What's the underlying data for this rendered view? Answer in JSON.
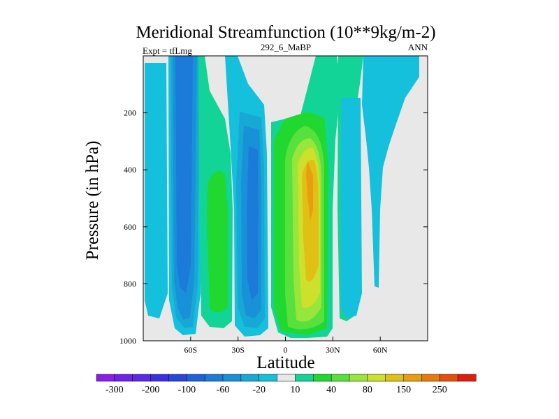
{
  "chart_data": {
    "type": "heatmap",
    "title": "Meridional Streamfunction (10**9kg/m-2)",
    "subtitle_left": "Expt = tfLmg",
    "subtitle_center": "292_6_MaBP",
    "subtitle_right": "ANN",
    "xlabel": "Latitude",
    "ylabel": "Pressure (in hPa)",
    "xlim": [
      -90,
      90
    ],
    "ylim": [
      1000,
      0
    ],
    "x_ticks": [
      {
        "value": -60,
        "label": "60S"
      },
      {
        "value": -30,
        "label": "30S"
      },
      {
        "value": 0,
        "label": "0"
      },
      {
        "value": 30,
        "label": "30N"
      },
      {
        "value": 60,
        "label": "60N"
      }
    ],
    "y_ticks": [
      {
        "value": 200,
        "label": "200"
      },
      {
        "value": 400,
        "label": "400"
      },
      {
        "value": 600,
        "label": "600"
      },
      {
        "value": 800,
        "label": "800"
      },
      {
        "value": 1000,
        "label": "1000"
      }
    ],
    "colorbar": {
      "levels": [
        -300,
        -250,
        -200,
        -150,
        -100,
        -80,
        -60,
        -40,
        -20,
        -10,
        10,
        20,
        40,
        60,
        80,
        100,
        150,
        200,
        250,
        300
      ],
      "labels": [
        "-300",
        "-200",
        "-100",
        "-60",
        "-20",
        "10",
        "40",
        "80",
        "150",
        "250"
      ],
      "colors": [
        "#8a1ee6",
        "#6f22e8",
        "#5a2ae6",
        "#3a30e0",
        "#2846d8",
        "#1d62d8",
        "#1c7ad8",
        "#1991d8",
        "#18a8d6",
        "#14c0dc",
        "#e8e8e8",
        "#12d496",
        "#20d830",
        "#58e03c",
        "#96e63c",
        "#cce02c",
        "#e0c014",
        "#e89e10",
        "#e87a0c",
        "#e4500c",
        "#e01e10"
      ]
    },
    "cells": [
      {
        "name": "cell-southern-polar",
        "lat_center": -82,
        "p_top": 100,
        "p_bottom": 900,
        "class": "-10 to -20"
      },
      {
        "name": "cell-southern-ferrel-core",
        "lat_center": -62,
        "p_top": 0,
        "p_bottom": 950,
        "class": "-60 to -80"
      },
      {
        "name": "cell-southern-midlat-positive",
        "lat_center": -40,
        "p_top": 0,
        "p_bottom": 950,
        "class": "20 to 40"
      },
      {
        "name": "cell-southern-hadley-core",
        "lat_center": -18,
        "p_top": 150,
        "p_bottom": 950,
        "class": "-60 to -80"
      },
      {
        "name": "cell-northern-hadley-core",
        "lat_center": 16,
        "p_top": 150,
        "p_bottom": 970,
        "class": "150 to 200"
      },
      {
        "name": "cell-northern-midlat-negative",
        "lat_center": 48,
        "p_top": 0,
        "p_bottom": 900,
        "class": "-10 to -20"
      }
    ]
  }
}
